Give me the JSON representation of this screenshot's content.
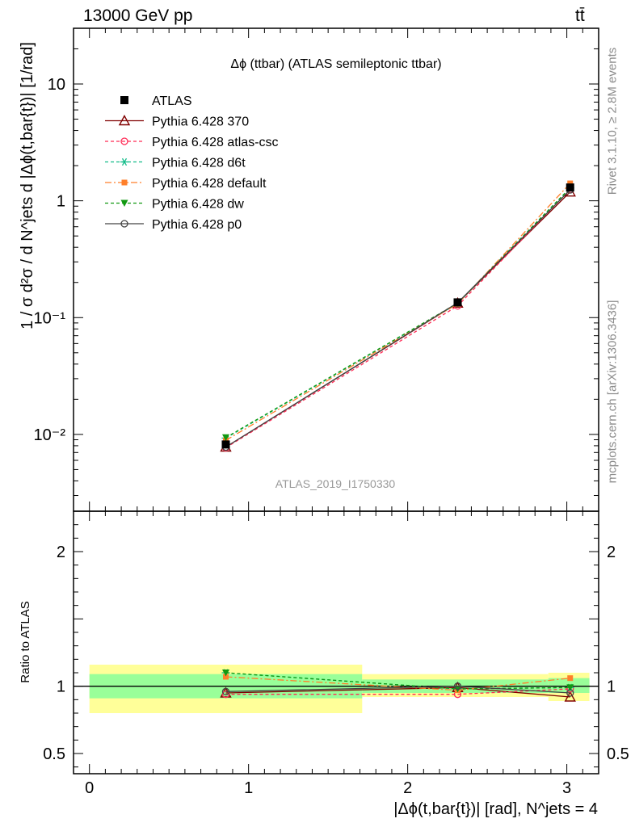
{
  "header": {
    "energy": "13000 GeV pp",
    "process": "tt̄"
  },
  "side_labels": {
    "rivet": "Rivet 3.1.10, ≥ 2.8M events",
    "mcplots": "mcplots.cern.ch [arXiv:1306.3436]"
  },
  "watermark": "ATLAS_2019_I1750330",
  "chart_data": [
    {
      "type": "line",
      "title": "Δϕ (ttbar) (ATLAS semileptonic ttbar)",
      "ylabel": "1 / σ d²σ / d N^jets d |Δϕ(t,bar{t})| [1/rad]",
      "yscale": "log",
      "ylim": [
        0.0022,
        30
      ],
      "xlim": [
        -0.1,
        3.2
      ],
      "yticks": [
        {
          "v": 0.01,
          "label": "10⁻²"
        },
        {
          "v": 0.1,
          "label": "10⁻¹"
        },
        {
          "v": 1,
          "label": "1"
        },
        {
          "v": 10,
          "label": "10"
        }
      ],
      "legend_position": "top-left",
      "x": [
        0.857,
        2.314,
        3.021
      ],
      "data": {
        "name": "ATLAS",
        "values": [
          0.0082,
          0.135,
          1.3
        ]
      },
      "series": [
        {
          "name": "Pythia 6.428 370",
          "values": [
            0.0078,
            0.133,
            1.19
          ],
          "color": "#800000",
          "marker": "triangle-open",
          "dash": ""
        },
        {
          "name": "Pythia 6.428 atlas-csc",
          "values": [
            0.0077,
            0.126,
            1.25
          ],
          "color": "#ff2a55",
          "marker": "circle-open",
          "dash": "4,3"
        },
        {
          "name": "Pythia 6.428 d6t",
          "values": [
            0.0093,
            0.132,
            1.29
          ],
          "color": "#11bb88",
          "marker": "asterisk",
          "dash": "4,3"
        },
        {
          "name": "Pythia 6.428 default",
          "values": [
            0.0089,
            0.131,
            1.41
          ],
          "color": "#ff7f2a",
          "marker": "square",
          "dash": "8,3,2,3"
        },
        {
          "name": "Pythia 6.428 dw",
          "values": [
            0.0094,
            0.133,
            1.29
          ],
          "color": "#119911",
          "marker": "triangle-down",
          "dash": "4,3"
        },
        {
          "name": "Pythia 6.428 p0",
          "values": [
            0.0078,
            0.134,
            1.24
          ],
          "color": "#444444",
          "marker": "circle-open",
          "dash": ""
        }
      ]
    },
    {
      "type": "line",
      "xlabel": "|Δϕ(t,bar{t})| [rad], N^jets = 4",
      "ylabel": "Ratio to ATLAS",
      "ylim": [
        0.35,
        2.3
      ],
      "xlim": [
        -0.1,
        3.2
      ],
      "xticks": [
        0,
        1,
        2,
        3
      ],
      "yticks": [
        {
          "v": 0.5,
          "label": "0.5"
        },
        {
          "v": 1,
          "label": "1"
        },
        {
          "v": 2,
          "label": "2"
        }
      ],
      "bands": [
        {
          "x0": 0.0,
          "x1": 1.714,
          "inner": [
            0.91,
            1.09
          ],
          "outer": [
            0.8,
            1.16
          ]
        },
        {
          "x0": 1.714,
          "x1": 2.884,
          "inner": [
            0.95,
            1.05
          ],
          "outer": [
            0.92,
            1.09
          ]
        },
        {
          "x0": 2.884,
          "x1": 3.142,
          "inner": [
            0.95,
            1.06
          ],
          "outer": [
            0.89,
            1.1
          ]
        }
      ],
      "x": [
        0.857,
        2.314,
        3.021
      ],
      "series": [
        {
          "name": "Pythia 6.428 370",
          "values": [
            0.95,
            0.99,
            0.92
          ],
          "color": "#800000",
          "marker": "triangle-open",
          "dash": ""
        },
        {
          "name": "Pythia 6.428 atlas-csc",
          "values": [
            0.94,
            0.94,
            0.98
          ],
          "color": "#ff2a55",
          "marker": "circle-open",
          "dash": "4,3"
        },
        {
          "name": "Pythia 6.428 d6t",
          "values": [
            1.1,
            0.98,
            0.99
          ],
          "color": "#11bb88",
          "marker": "asterisk",
          "dash": "4,3"
        },
        {
          "name": "Pythia 6.428 default",
          "values": [
            1.07,
            0.97,
            1.06
          ],
          "color": "#ff7f2a",
          "marker": "square",
          "dash": "8,3,2,3"
        },
        {
          "name": "Pythia 6.428 dw",
          "values": [
            1.1,
            0.98,
            0.99
          ],
          "color": "#119911",
          "marker": "triangle-down",
          "dash": "4,3"
        },
        {
          "name": "Pythia 6.428 p0",
          "values": [
            0.96,
            1.0,
            0.95
          ],
          "color": "#444444",
          "marker": "circle-open",
          "dash": ""
        }
      ]
    }
  ]
}
